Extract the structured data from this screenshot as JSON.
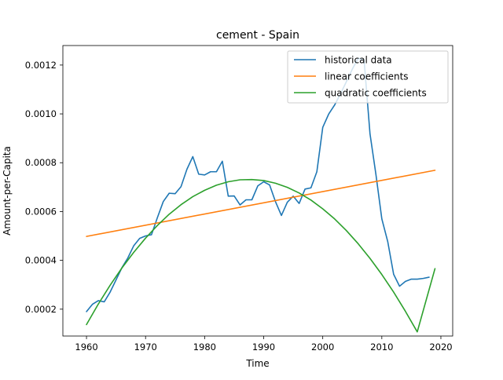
{
  "chart_data": {
    "type": "line",
    "title": "cement - Spain",
    "xlabel": "Time",
    "ylabel": "Amount-per-Capita",
    "xlim": [
      1956,
      2022
    ],
    "ylim": [
      9e-05,
      0.00128
    ],
    "x_ticks": [
      1960,
      1970,
      1980,
      1990,
      2000,
      2010,
      2020
    ],
    "y_ticks": [
      0.0002,
      0.0004,
      0.0006,
      0.0008,
      0.001,
      0.0012
    ],
    "y_tick_labels": [
      "0.0002",
      "0.0004",
      "0.0006",
      "0.0008",
      "0.0010",
      "0.0012"
    ],
    "grid": false,
    "legend_position": "top-right",
    "series": [
      {
        "name": "historical data",
        "color": "#1f77b4",
        "x": [
          1960,
          1961,
          1962,
          1963,
          1964,
          1965,
          1966,
          1967,
          1968,
          1969,
          1970,
          1971,
          1972,
          1973,
          1974,
          1975,
          1976,
          1977,
          1978,
          1979,
          1980,
          1981,
          1982,
          1983,
          1984,
          1985,
          1986,
          1987,
          1988,
          1989,
          1990,
          1991,
          1992,
          1993,
          1994,
          1995,
          1996,
          1997,
          1998,
          1999,
          2000,
          2001,
          2002,
          2003,
          2004,
          2005,
          2006,
          2007,
          2008,
          2009,
          2010,
          2011,
          2012,
          2013,
          2014,
          2015,
          2016,
          2017,
          2018
        ],
        "y": [
          0.00019,
          0.00022,
          0.000235,
          0.00023,
          0.00027,
          0.00032,
          0.00037,
          0.00041,
          0.00046,
          0.00049,
          0.0005,
          0.000505,
          0.000575,
          0.000641,
          0.000675,
          0.000673,
          0.000702,
          0.000773,
          0.000825,
          0.000753,
          0.00075,
          0.000763,
          0.000763,
          0.000806,
          0.000663,
          0.000664,
          0.000627,
          0.000648,
          0.000648,
          0.000705,
          0.000722,
          0.000709,
          0.00064,
          0.000584,
          0.000638,
          0.000663,
          0.000633,
          0.000692,
          0.000697,
          0.000763,
          0.000945,
          0.000999,
          0.001036,
          0.001082,
          0.001132,
          0.001183,
          0.001228,
          0.00122,
          0.000918,
          0.000752,
          0.00057,
          0.000477,
          0.000343,
          0.000294,
          0.000314,
          0.000323,
          0.000323,
          0.000326,
          0.000331
        ]
      },
      {
        "name": "linear coefficients",
        "color": "#ff7f0e",
        "x": [
          1960,
          2019
        ],
        "y": [
          0.000498,
          0.000769
        ]
      },
      {
        "name": "quadratic coefficients",
        "color": "#2ca02c",
        "x": [
          1960,
          1962,
          1964,
          1966,
          1968,
          1970,
          1972,
          1974,
          1976,
          1978,
          1980,
          1982,
          1984,
          1986,
          1988,
          1990,
          1992,
          1994,
          1996,
          1998,
          2000,
          2002,
          2004,
          2006,
          2008,
          2010,
          2012,
          2014,
          2016,
          2019
        ],
        "y": [
          0.000137,
          0.000221,
          0.000298,
          0.000369,
          0.000433,
          0.000491,
          0.000543,
          0.000589,
          0.000628,
          0.000661,
          0.000687,
          0.000708,
          0.000722,
          0.00073,
          0.000731,
          0.000727,
          0.000716,
          0.000699,
          0.000676,
          0.000647,
          0.000611,
          0.00057,
          0.000522,
          0.000468,
          0.000408,
          0.000342,
          0.00027,
          0.000191,
          0.000107,
          0.000366
        ]
      }
    ]
  }
}
